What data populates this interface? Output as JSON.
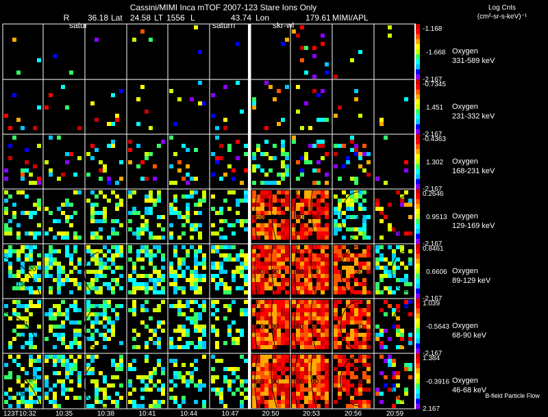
{
  "header": {
    "title": "Cassini/MIMI Inca mTOF  2007-123   Stare   Ions Only",
    "r_label": "R",
    "r_value": "36.18",
    "lat_label": "Lat",
    "lat_value": "24.58",
    "lt_label": "LT",
    "lt_value": "1556",
    "l_label": "L",
    "l_value": "43.74",
    "lon_label": "Lon",
    "lon_value": "179.61",
    "institution": "MIMI/APL",
    "target_labels": [
      "satur",
      "saturn",
      "skr-wl"
    ]
  },
  "colorbar_title_line1": "Log Cnts",
  "colorbar_title_line2": "(cm²-sr-s-keV)⁻¹",
  "footer_label": "B-field Particle Flow",
  "chart_data": {
    "type": "heatmap",
    "title": "Cassini/MIMI Inca mTOF  2007-123   Stare   Ions Only",
    "x": [
      "123T10:32",
      "10:35",
      "10:38",
      "10:41",
      "10:44",
      "10:47",
      "20:50",
      "20:53",
      "20:56",
      "20:59"
    ],
    "series": [
      {
        "name": "Oxygen",
        "energy": "331-589 keV",
        "cb_max": "-1.168",
        "cb_mid": "-1.668",
        "cb_min": "-2.167",
        "activity": [
          0.03,
          0.02,
          0.02,
          0.03,
          0.02,
          0.02,
          0.04,
          0.05,
          0.03,
          0.02
        ]
      },
      {
        "name": "Oxygen",
        "energy": "231-332 keV",
        "cb_max": "-0.7345",
        "cb_mid": "1.451",
        "cb_min": "-2.167",
        "activity": [
          0.05,
          0.05,
          0.06,
          0.06,
          0.04,
          0.05,
          0.12,
          0.08,
          0.08,
          0.03
        ]
      },
      {
        "name": "Oxygen",
        "energy": "168-231 keV",
        "cb_max": "-0.4363",
        "cb_mid": "1.302",
        "cb_min": "-2.167",
        "activity": [
          0.14,
          0.13,
          0.18,
          0.2,
          0.16,
          0.16,
          0.32,
          0.26,
          0.26,
          0.05
        ]
      },
      {
        "name": "Oxygen",
        "energy": "129-169 keV",
        "cb_max": "0.2646",
        "cb_mid": "0.9513",
        "cb_min": "-2.167",
        "activity": [
          0.34,
          0.32,
          0.38,
          0.4,
          0.36,
          0.34,
          0.7,
          0.72,
          0.55,
          0.18
        ]
      },
      {
        "name": "Oxygen",
        "energy": "89-129 keV",
        "cb_max": "0.8461",
        "cb_mid": "0.6606",
        "cb_min": "-2.167",
        "activity": [
          0.55,
          0.55,
          0.55,
          0.55,
          0.55,
          0.5,
          0.85,
          0.88,
          0.7,
          0.4
        ]
      },
      {
        "name": "Oxygen",
        "energy": "68-90 keV",
        "cb_max": "1.039",
        "cb_mid": "-0.5643",
        "cb_min": "-2.167",
        "activity": [
          0.45,
          0.42,
          0.45,
          0.42,
          0.42,
          0.4,
          0.9,
          0.92,
          0.72,
          0.3
        ]
      },
      {
        "name": "Oxygen",
        "energy": "46-68 keV",
        "cb_max": "1.384",
        "cb_mid": "-0.3916",
        "cb_min": "2.167",
        "activity": [
          0.4,
          0.38,
          0.4,
          0.38,
          0.35,
          0.35,
          0.88,
          0.9,
          0.68,
          0.3
        ]
      }
    ],
    "contour_labels": [
      "120",
      "150",
      "60",
      "90",
      "30",
      "120"
    ],
    "colormap": [
      "#8c00ff",
      "#0000ff",
      "#00c8ff",
      "#00ffff",
      "#33ff66",
      "#ccff00",
      "#ffff00",
      "#ffaa00",
      "#ff5500",
      "#ff0000",
      "#cc0000"
    ]
  }
}
